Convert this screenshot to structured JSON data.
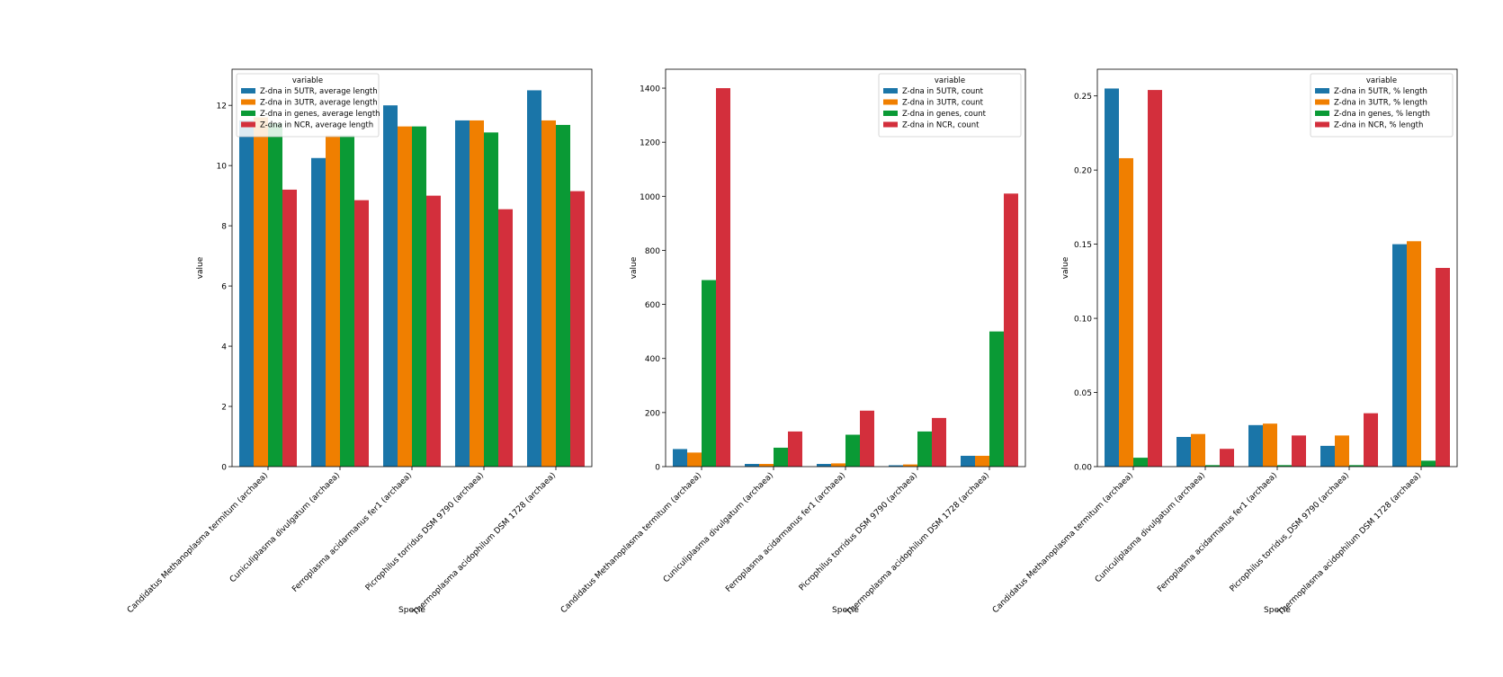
{
  "palette": [
    "#0173b2",
    "#de8f05",
    "#029e73",
    "#d55e00"
  ],
  "colors": {
    "blue": "#1a75a8",
    "orange": "#f07f00",
    "green": "#0a9a35",
    "red": "#d32f3c"
  },
  "chart_data": [
    {
      "type": "bar",
      "xlabel": "Specie",
      "ylabel": "value",
      "ylim": [
        0,
        13.2
      ],
      "yticks": [
        "0",
        "2",
        "4",
        "6",
        "8",
        "10",
        "12"
      ],
      "legend_title": "variable",
      "legend_position": "upper left",
      "categories": [
        "Candidatus Methanoplasma termitum (archaea)",
        "Cuniculiplasma divulgatum (archaea)",
        "Ferroplasma acidarmanus fer1 (archaea)",
        "Picrophilus torridus DSM 9790 (archaea)",
        "Thermoplasma acidophilum DSM 1728 (archaea)"
      ],
      "series": [
        {
          "name": "Z-dna in 5UTR, average length",
          "values": [
            11.5,
            10.25,
            12.0,
            11.5,
            12.5
          ]
        },
        {
          "name": "Z-dna in 3UTR, average length",
          "values": [
            11.6,
            11.0,
            11.3,
            11.5,
            11.5
          ]
        },
        {
          "name": "Z-dna in genes, average length",
          "values": [
            11.4,
            11.0,
            11.3,
            11.1,
            11.35
          ]
        },
        {
          "name": "Z-dna in NCR, average length",
          "values": [
            9.2,
            8.85,
            9.0,
            8.55,
            9.15
          ]
        }
      ]
    },
    {
      "type": "bar",
      "xlabel": "Specie",
      "ylabel": "value",
      "ylim": [
        0,
        1470
      ],
      "yticks": [
        "0",
        "200",
        "400",
        "600",
        "800",
        "1000",
        "1200",
        "1400"
      ],
      "legend_title": "variable",
      "legend_position": "upper right",
      "categories": [
        "Candidatus Methanoplasma termitum (archaea)",
        "Cuniculiplasma divulgatum (archaea)",
        "Ferroplasma acidarmanus fer1 (archaea)",
        "Picrophilus torridus DSM 9790 (archaea)",
        "Thermoplasma acidophilum DSM 1728 (archaea)"
      ],
      "series": [
        {
          "name": "Z-dna in 5UTR, count",
          "values": [
            65,
            10,
            10,
            5,
            40
          ]
        },
        {
          "name": "Z-dna in 3UTR, count",
          "values": [
            52,
            10,
            12,
            8,
            40
          ]
        },
        {
          "name": "Z-dna in genes, count",
          "values": [
            690,
            70,
            118,
            130,
            500
          ]
        },
        {
          "name": "Z-dna in NCR, count",
          "values": [
            1400,
            130,
            207,
            180,
            1010
          ]
        }
      ]
    },
    {
      "type": "bar",
      "xlabel": "Specie",
      "ylabel": "value",
      "ylim": [
        0,
        0.268
      ],
      "yticks": [
        "0.00",
        "0.05",
        "0.10",
        "0.15",
        "0.20",
        "0.25"
      ],
      "legend_title": "variable",
      "legend_position": "upper right",
      "categories": [
        "Candidatus Methanoplasma termitum (archaea)",
        "Cuniculiplasma divulgatum (archaea)",
        "Ferroplasma acidarmanus fer1 (archaea)",
        "Picrophilus torridus_DSM 9790 (archaea)",
        "Thermoplasma acidophilum DSM 1728 (archaea)"
      ],
      "series": [
        {
          "name": "Z-dna in 5UTR, % length",
          "values": [
            0.255,
            0.02,
            0.028,
            0.014,
            0.15
          ]
        },
        {
          "name": "Z-dna in 3UTR, % length",
          "values": [
            0.208,
            0.022,
            0.029,
            0.021,
            0.152
          ]
        },
        {
          "name": "Z-dna in genes, % length",
          "values": [
            0.006,
            0.001,
            0.001,
            0.001,
            0.004
          ]
        },
        {
          "name": "Z-dna in NCR, % length",
          "values": [
            0.254,
            0.012,
            0.021,
            0.036,
            0.134
          ]
        }
      ]
    }
  ]
}
